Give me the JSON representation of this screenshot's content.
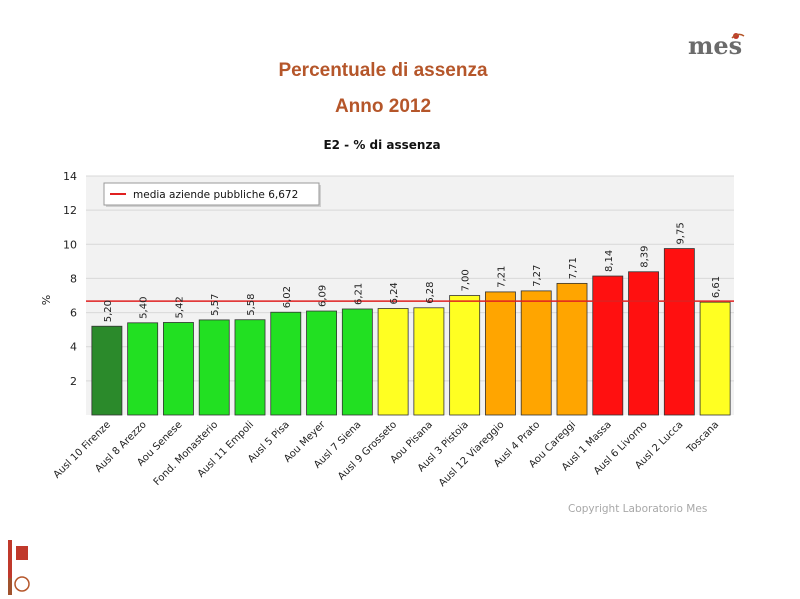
{
  "slide": {
    "title_line1": "Percentuale di assenza",
    "title_line2": "Anno 2012",
    "copyright": "Copyright Laboratorio Mes",
    "logo_text": "mes"
  },
  "colors": {
    "title": "#b5562a",
    "dark_green": "#2b8a2b",
    "green": "#22e022",
    "yellow": "#ffff22",
    "orange": "#ffa500",
    "red": "#ff1010",
    "reference_line": "#e02020",
    "plot_background": "#f2f2f2",
    "grid": "#d8d8d8"
  },
  "chart_data": {
    "type": "bar",
    "title": "E2 - % di assenza",
    "ylabel": "%",
    "xlabel": "",
    "ylim": [
      0,
      14
    ],
    "yticks": [
      2,
      4,
      6,
      8,
      10,
      12,
      14
    ],
    "grid": true,
    "legend_position": "top-left",
    "categories": [
      "Ausl 10 Firenze",
      "Ausl 8 Arezzo",
      "Aou Senese",
      "Fond. Monasterio",
      "Ausl 11 Empoli",
      "Ausl 5 Pisa",
      "Aou Meyer",
      "Ausl 7 Siena",
      "Ausl 9 Grosseto",
      "Aou Pisana",
      "Ausl 3 Pistoia",
      "Ausl 12 Viareggio",
      "Ausl 4 Prato",
      "Aou Careggi",
      "Ausl 1 Massa",
      "Ausl 6 Livorno",
      "Ausl 2 Lucca",
      "Toscana"
    ],
    "values": [
      5.2,
      5.4,
      5.42,
      5.57,
      5.58,
      6.02,
      6.09,
      6.21,
      6.24,
      6.28,
      7.0,
      7.21,
      7.27,
      7.71,
      8.14,
      8.39,
      9.75,
      6.61
    ],
    "value_labels": [
      "5,20",
      "5,40",
      "5,42",
      "5,57",
      "5,58",
      "6,02",
      "6,09",
      "6,21",
      "6,24",
      "6,28",
      "7,00",
      "7,21",
      "7,27",
      "7,71",
      "8,14",
      "8,39",
      "9,75",
      "6,61"
    ],
    "bar_colors": [
      "#2b8a2b",
      "#22e022",
      "#22e022",
      "#22e022",
      "#22e022",
      "#22e022",
      "#22e022",
      "#22e022",
      "#ffff22",
      "#ffff22",
      "#ffff22",
      "#ffa500",
      "#ffa500",
      "#ffa500",
      "#ff1010",
      "#ff1010",
      "#ff1010",
      "#ffff22"
    ],
    "reference_line": {
      "value": 6.672,
      "label": "media aziende pubbliche 6,672"
    }
  }
}
